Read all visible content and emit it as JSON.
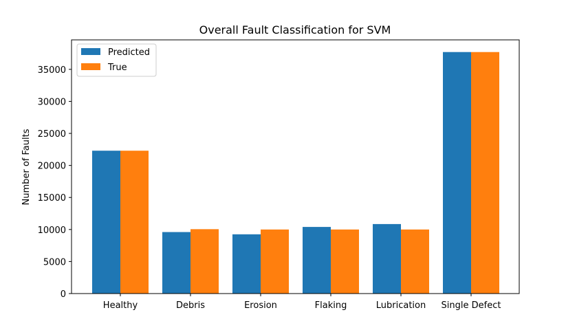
{
  "chart_data": {
    "type": "bar",
    "title": "Overall Fault Classification for SVM",
    "xlabel": "",
    "ylabel": "Number of Faults",
    "categories": [
      "Healthy",
      "Debris",
      "Erosion",
      "Flaking",
      "Lubrication",
      "Single Defect"
    ],
    "series": [
      {
        "name": "Predicted",
        "color": "#1f77b4",
        "values": [
          22300,
          9600,
          9250,
          10400,
          10850,
          37700
        ]
      },
      {
        "name": "True",
        "color": "#ff7f0e",
        "values": [
          22300,
          10050,
          10000,
          10000,
          10000,
          37700
        ]
      }
    ],
    "ylim": [
      0,
      39600
    ],
    "yticks": [
      "0",
      "5000",
      "10000",
      "15000",
      "20000",
      "25000",
      "30000",
      "35000"
    ],
    "legend_position": "top-left",
    "grid": false
  }
}
